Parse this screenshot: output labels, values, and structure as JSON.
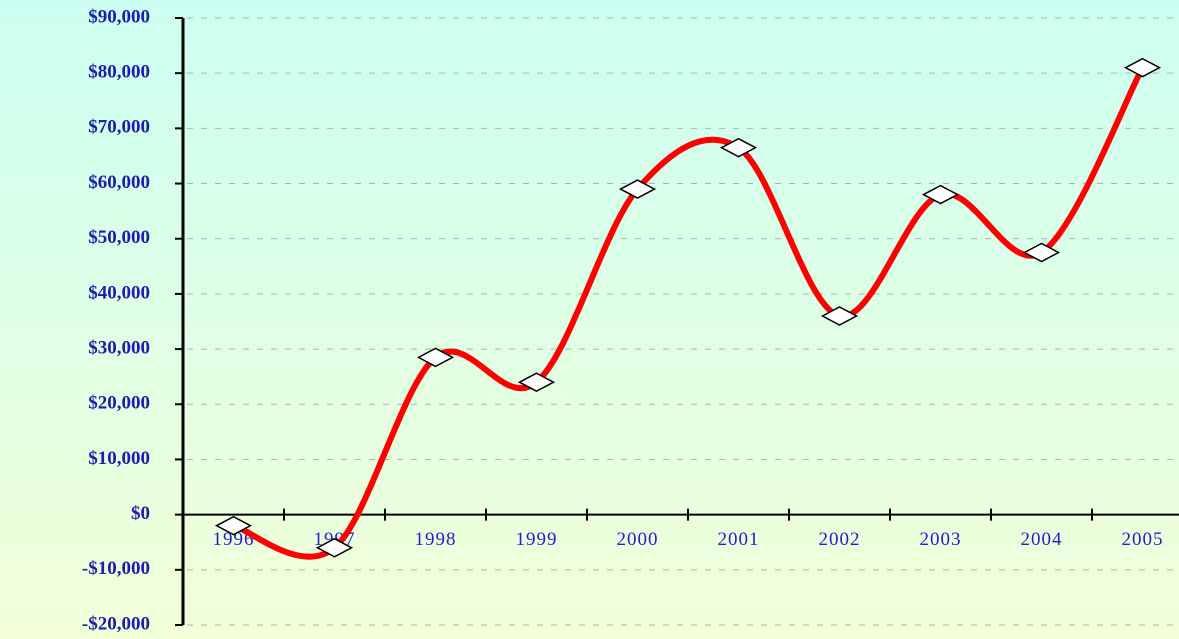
{
  "chart_data": {
    "type": "line",
    "categories": [
      "1996",
      "1997",
      "1998",
      "1999",
      "2000",
      "2001",
      "2002",
      "2003",
      "2004",
      "2005"
    ],
    "series": [
      {
        "color": "#ff0000",
        "values": [
          -2000,
          -6000,
          28500,
          24000,
          59000,
          66500,
          36000,
          58000,
          47500,
          81000
        ]
      }
    ],
    "ylim": [
      -20000,
      90000
    ],
    "yticks": [
      {
        "value": -20000,
        "label": "-$20,000"
      },
      {
        "value": -10000,
        "label": "-$10,000"
      },
      {
        "value": 0,
        "label": "$0"
      },
      {
        "value": 10000,
        "label": "$10,000"
      },
      {
        "value": 20000,
        "label": "$20,000"
      },
      {
        "value": 30000,
        "label": "$30,000"
      },
      {
        "value": 40000,
        "label": "$40,000"
      },
      {
        "value": 50000,
        "label": "$50,000"
      },
      {
        "value": 60000,
        "label": "$60,000"
      },
      {
        "value": 70000,
        "label": "$70,000"
      },
      {
        "value": 80000,
        "label": "$80,000"
      },
      {
        "value": 90000,
        "label": "$90,000"
      }
    ],
    "grid": true,
    "smooth": true,
    "marker": "diamond"
  }
}
